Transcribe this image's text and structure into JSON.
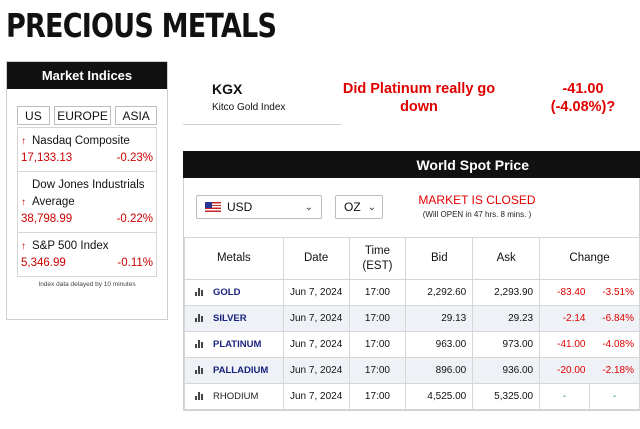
{
  "page": {
    "title": "PRECIOUS METALS"
  },
  "market_indices": {
    "header": "Market Indices",
    "tabs": [
      "US",
      "EUROPE",
      "ASIA"
    ],
    "items": [
      {
        "name": "Nasdaq Composite",
        "value": "17,133.13",
        "change": "-0.23%"
      },
      {
        "name": "Dow Jones Industrials Average",
        "value": "38,798.99",
        "change": "-0.22%"
      },
      {
        "name": "S&P 500 Index",
        "value": "5,346.99",
        "change": "-0.11%"
      }
    ],
    "footnote": "Index data delayed by 10 minutes"
  },
  "kgx": {
    "code": "KGX",
    "subtitle": "Kitco Gold Index",
    "question": "Did Platinum really go down",
    "change": "-41.00 (-4.08%)?"
  },
  "world_spot": {
    "header": "World Spot Price",
    "currency": "USD",
    "unit": "OZ",
    "market_status": "MARKET IS CLOSED",
    "reopen": "(Will OPEN in 47 hrs. 8 mins. )",
    "columns": [
      "Metals",
      "Date",
      "Time (EST)",
      "Bid",
      "Ask",
      "Change"
    ],
    "rows": [
      {
        "metal": "GOLD",
        "date": "Jun 7, 2024",
        "time": "17:00",
        "bid": "2,292.60",
        "ask": "2,293.90",
        "change": "-83.40",
        "pct": "-3.51%"
      },
      {
        "metal": "SILVER",
        "date": "Jun 7, 2024",
        "time": "17:00",
        "bid": "29.13",
        "ask": "29.23",
        "change": "-2.14",
        "pct": "-6.84%"
      },
      {
        "metal": "PLATINUM",
        "date": "Jun 7, 2024",
        "time": "17:00",
        "bid": "963.00",
        "ask": "973.00",
        "change": "-41.00",
        "pct": "-4.08%"
      },
      {
        "metal": "PALLADIUM",
        "date": "Jun 7, 2024",
        "time": "17:00",
        "bid": "896.00",
        "ask": "936.00",
        "change": "-20.00",
        "pct": "-2.18%"
      },
      {
        "metal": "RHODIUM",
        "date": "Jun 7, 2024",
        "time": "17:00",
        "bid": "4,525.00",
        "ask": "5,325.00",
        "change": "-",
        "pct": "-"
      }
    ]
  },
  "colors": {
    "negative": "#e00000",
    "header_bg": "#111111",
    "metal_link": "#1a237e",
    "neutral_dash": "#2e7d32"
  }
}
